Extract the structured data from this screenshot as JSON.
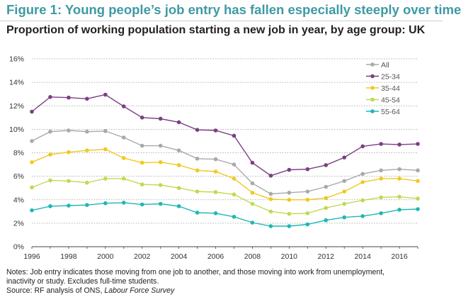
{
  "header": {
    "title": "Figure 1: Young people’s job entry has fallen especially steeply over time",
    "subtitle": "Proportion of working population starting a new job in year, by age group: UK"
  },
  "notes": {
    "line1": "Notes: Job entry indicates those moving from one job to another, and those moving into work from unemployment,",
    "line2": "inactivity or study. Excludes full-time students.",
    "source_prefix": "Source: RF analysis of ONS, ",
    "source_italic": "Labour Force Survey"
  },
  "chart_data": {
    "type": "line",
    "title": "Proportion of working population starting a new job in year, by age group: UK",
    "xlabel": "",
    "ylabel": "",
    "x": [
      1996,
      1997,
      1998,
      1999,
      2000,
      2001,
      2002,
      2003,
      2004,
      2005,
      2006,
      2007,
      2008,
      2009,
      2010,
      2011,
      2012,
      2013,
      2014,
      2015,
      2016,
      2017
    ],
    "xlim": [
      1996,
      2017
    ],
    "xticks": [
      1996,
      1998,
      2000,
      2002,
      2004,
      2006,
      2008,
      2010,
      2012,
      2014,
      2016
    ],
    "ylim": [
      0,
      16
    ],
    "yticks": [
      0,
      2,
      4,
      6,
      8,
      10,
      12,
      14,
      16
    ],
    "ytick_suffix": "%",
    "grid": "horizontal dotted",
    "legend_position": "top-right",
    "series": [
      {
        "name": "All",
        "color": "#a9a9a9",
        "values": [
          9.0,
          9.8,
          9.9,
          9.8,
          9.85,
          9.3,
          8.6,
          8.6,
          8.2,
          7.5,
          7.45,
          7.0,
          5.4,
          4.5,
          4.6,
          4.7,
          5.1,
          5.6,
          6.2,
          6.5,
          6.6,
          6.5
        ]
      },
      {
        "name": "25-34",
        "color": "#7b3f83",
        "values": [
          11.5,
          12.75,
          12.7,
          12.6,
          12.95,
          11.95,
          11.0,
          10.9,
          10.6,
          9.95,
          9.9,
          9.45,
          7.15,
          6.05,
          6.55,
          6.6,
          6.95,
          7.6,
          8.55,
          8.75,
          8.7,
          8.75
        ]
      },
      {
        "name": "35-44",
        "color": "#f2c81c",
        "values": [
          7.2,
          7.85,
          8.05,
          8.2,
          8.3,
          7.55,
          7.15,
          7.2,
          6.95,
          6.5,
          6.4,
          5.8,
          4.6,
          4.05,
          4.0,
          4.0,
          4.15,
          4.7,
          5.5,
          5.8,
          5.8,
          5.6
        ]
      },
      {
        "name": "45-54",
        "color": "#c0da4f",
        "values": [
          5.05,
          5.65,
          5.6,
          5.45,
          5.8,
          5.8,
          5.3,
          5.25,
          5.0,
          4.7,
          4.65,
          4.45,
          3.65,
          3.0,
          2.8,
          2.85,
          3.3,
          3.65,
          3.95,
          4.2,
          4.25,
          4.1
        ]
      },
      {
        "name": "55-64",
        "color": "#1fb7b5",
        "values": [
          3.1,
          3.45,
          3.5,
          3.55,
          3.7,
          3.75,
          3.6,
          3.65,
          3.45,
          2.9,
          2.85,
          2.55,
          2.05,
          1.75,
          1.75,
          1.9,
          2.25,
          2.5,
          2.6,
          2.85,
          3.15,
          3.2
        ]
      }
    ]
  }
}
